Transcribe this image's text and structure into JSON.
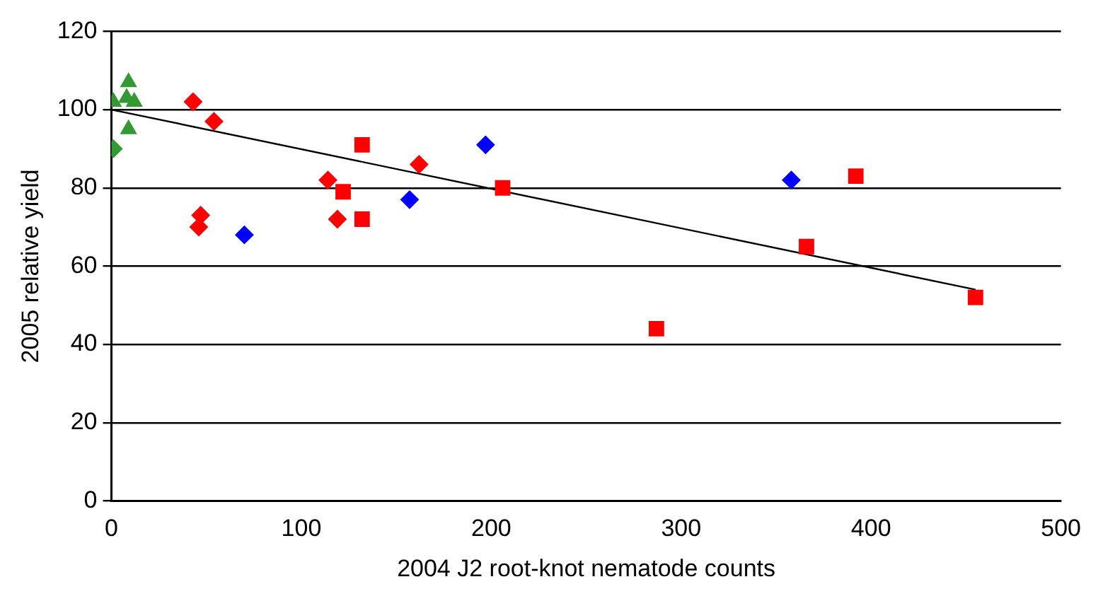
{
  "chart_data": {
    "type": "scatter",
    "xlabel": "2004 J2 root-knot nematode counts",
    "ylabel": "2005 relative yield",
    "xlim": [
      0,
      500
    ],
    "xticks": [
      0,
      100,
      200,
      300,
      400,
      500
    ],
    "ylim": [
      0,
      120
    ],
    "yticks": [
      0,
      20,
      40,
      60,
      80,
      100,
      120
    ],
    "grid": "y",
    "legend": false,
    "series": [
      {
        "color": "#ff0000",
        "marker": "diamond",
        "x": [
          43,
          54,
          114,
          119,
          162,
          47,
          46
        ],
        "values": [
          102,
          97,
          82,
          72,
          86,
          73,
          70
        ]
      },
      {
        "color": "#ff0000",
        "marker": "square",
        "x": [
          132,
          132,
          122,
          206,
          366,
          392,
          287,
          455
        ],
        "values": [
          91,
          72,
          79,
          80,
          65,
          83,
          44,
          52
        ]
      },
      {
        "color": "#0000ff",
        "marker": "diamond",
        "x": [
          70,
          157,
          197,
          358
        ],
        "values": [
          68,
          77,
          91,
          82
        ]
      },
      {
        "color": "#339933",
        "marker": "triangle",
        "x": [
          9,
          8,
          1,
          9,
          12
        ],
        "values": [
          107,
          103,
          102,
          95,
          102
        ]
      },
      {
        "color": "#339933",
        "marker": "diamond",
        "x": [
          1
        ],
        "values": [
          90
        ]
      },
      {
        "type": "line",
        "color": "#000000",
        "marker": "none",
        "x": [
          0,
          455
        ],
        "values": [
          100,
          54
        ]
      }
    ]
  }
}
